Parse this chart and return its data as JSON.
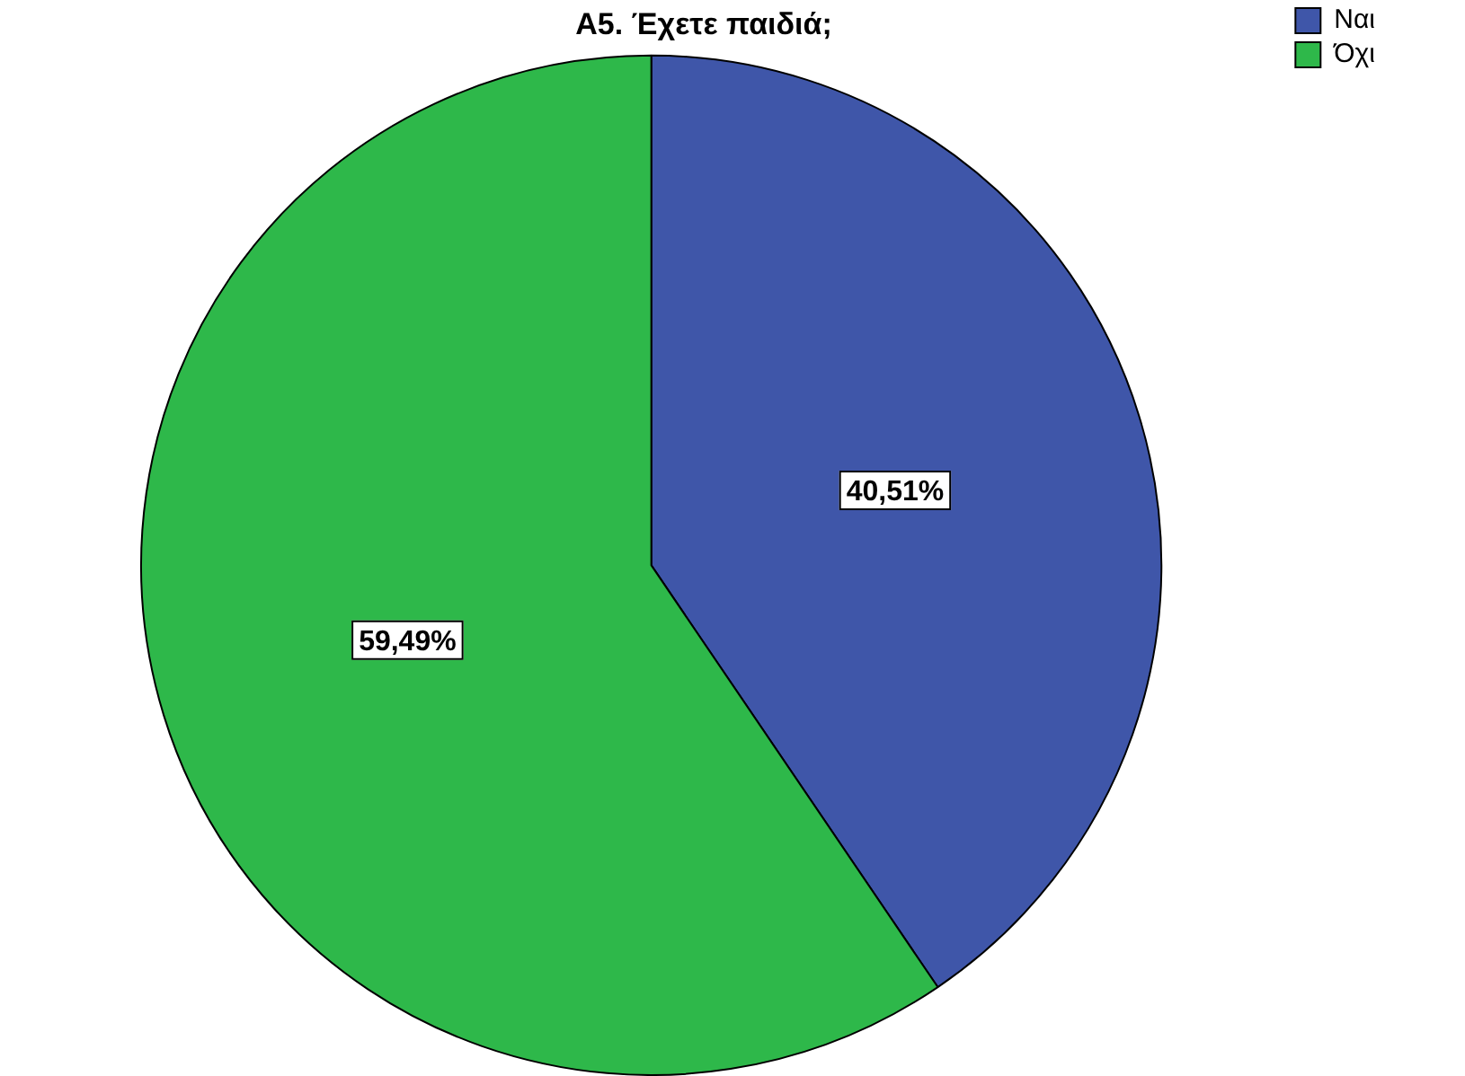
{
  "chart_data": {
    "type": "pie",
    "title": "A5. Έχετε παιδιά;",
    "categories": [
      "Ναι",
      "Όχι"
    ],
    "values": [
      40.51,
      59.49
    ],
    "value_labels": [
      "40,51%",
      "59,49%"
    ],
    "colors": [
      "#3f56a9",
      "#2eb84a"
    ],
    "legend": "top right"
  }
}
